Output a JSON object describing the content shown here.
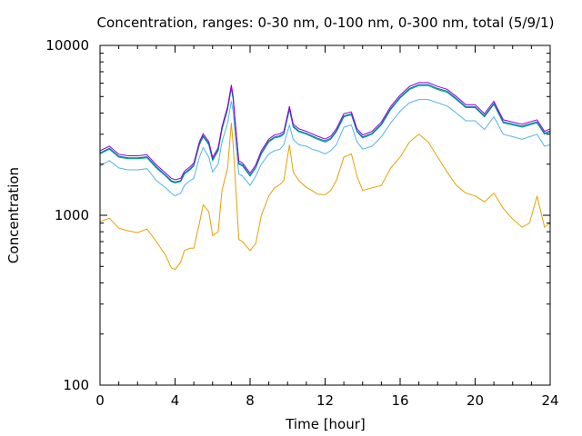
{
  "chart_data": {
    "type": "line",
    "title": "Concentration, ranges: 0-30 nm, 0-100 nm, 0-300 nm, total (5/9/1)",
    "xlabel": "Time [hour]",
    "ylabel": "Concentration",
    "xlim": [
      0,
      24
    ],
    "ylim": [
      100,
      10000
    ],
    "yscale": "log",
    "grid": false,
    "x_ticks": [
      "0",
      "4",
      "8",
      "12",
      "16",
      "20",
      "24"
    ],
    "y_ticks": [
      "100",
      "1000",
      "10000"
    ],
    "series": [
      {
        "color": "#e6a000",
        "x": [
          0,
          0.5,
          1,
          1.5,
          2,
          2.5,
          3,
          3.5,
          3.8,
          4,
          4.3,
          4.5,
          4.8,
          5,
          5.3,
          5.5,
          5.8,
          6,
          6.3,
          6.5,
          6.8,
          7,
          7.1,
          7.2,
          7.4,
          7.6,
          8,
          8.3,
          8.6,
          9,
          9.3,
          9.6,
          9.8,
          10.1,
          10.3,
          10.6,
          11,
          11.3,
          11.6,
          12,
          12.3,
          12.6,
          13,
          13.4,
          13.7,
          14,
          14.5,
          15,
          15.5,
          16,
          16.5,
          17,
          17.5,
          18,
          18.5,
          19,
          19.5,
          20,
          20.5,
          21,
          21.5,
          22,
          22.5,
          22.9,
          23.3,
          23.7,
          24
        ],
        "values": [
          920,
          960,
          840,
          810,
          790,
          830,
          700,
          580,
          490,
          480,
          530,
          620,
          640,
          640,
          900,
          1150,
          1050,
          760,
          800,
          1400,
          1900,
          3500,
          2600,
          1700,
          720,
          700,
          620,
          680,
          1000,
          1300,
          1450,
          1520,
          1600,
          2600,
          1800,
          1600,
          1460,
          1400,
          1330,
          1320,
          1400,
          1600,
          2200,
          2300,
          1700,
          1400,
          1450,
          1500,
          1900,
          2200,
          2700,
          3000,
          2700,
          2200,
          1800,
          1500,
          1350,
          1300,
          1200,
          1350,
          1100,
          950,
          850,
          900,
          1300,
          850,
          900
        ]
      },
      {
        "color": "#56b4e9",
        "x": [
          0,
          0.5,
          1,
          1.5,
          2,
          2.5,
          3,
          3.5,
          3.8,
          4,
          4.3,
          4.5,
          4.8,
          5,
          5.3,
          5.5,
          5.8,
          6,
          6.3,
          6.5,
          6.8,
          7,
          7.1,
          7.2,
          7.4,
          7.6,
          8,
          8.3,
          8.6,
          9,
          9.3,
          9.6,
          9.8,
          10.1,
          10.3,
          10.6,
          11,
          11.3,
          11.6,
          12,
          12.3,
          12.6,
          13,
          13.4,
          13.7,
          14,
          14.5,
          15,
          15.5,
          16,
          16.5,
          17,
          17.5,
          18,
          18.5,
          19,
          19.5,
          20,
          20.5,
          21,
          21.5,
          22,
          22.5,
          22.9,
          23.3,
          23.7,
          24
        ],
        "values": [
          1950,
          2100,
          1900,
          1850,
          1850,
          1880,
          1600,
          1450,
          1350,
          1300,
          1350,
          1500,
          1600,
          1650,
          2200,
          2500,
          2200,
          1800,
          2000,
          2700,
          3500,
          4700,
          4100,
          3000,
          1750,
          1700,
          1500,
          1700,
          2000,
          2300,
          2400,
          2450,
          2600,
          3400,
          2800,
          2600,
          2550,
          2450,
          2400,
          2300,
          2400,
          2600,
          3300,
          3400,
          2700,
          2450,
          2550,
          2900,
          3500,
          4100,
          4600,
          4800,
          4800,
          4600,
          4400,
          4000,
          3600,
          3600,
          3200,
          3800,
          3000,
          2900,
          2800,
          2900,
          3000,
          2550,
          2600
        ]
      },
      {
        "color": "#009e73",
        "x": [
          0,
          0.5,
          1,
          1.5,
          2,
          2.5,
          3,
          3.5,
          3.8,
          4,
          4.3,
          4.5,
          4.8,
          5,
          5.3,
          5.5,
          5.8,
          6,
          6.3,
          6.5,
          6.8,
          7,
          7.1,
          7.2,
          7.4,
          7.6,
          8,
          8.3,
          8.6,
          9,
          9.3,
          9.6,
          9.8,
          10.1,
          10.3,
          10.6,
          11,
          11.3,
          11.6,
          12,
          12.3,
          12.6,
          13,
          13.4,
          13.7,
          14,
          14.5,
          15,
          15.5,
          16,
          16.5,
          17,
          17.5,
          18,
          18.5,
          19,
          19.5,
          20,
          20.5,
          21,
          21.5,
          22,
          22.5,
          22.9,
          23.3,
          23.7,
          24
        ],
        "values": [
          2300,
          2450,
          2200,
          2150,
          2150,
          2180,
          1900,
          1700,
          1580,
          1550,
          1580,
          1750,
          1850,
          1950,
          2600,
          2900,
          2600,
          2100,
          2400,
          3200,
          4200,
          5600,
          4800,
          3500,
          2000,
          1950,
          1700,
          1900,
          2300,
          2700,
          2850,
          2900,
          3000,
          4200,
          3300,
          3100,
          3000,
          2900,
          2800,
          2700,
          2800,
          3100,
          3800,
          3900,
          3100,
          2850,
          3000,
          3400,
          4200,
          4900,
          5500,
          5800,
          5800,
          5500,
          5300,
          4800,
          4300,
          4300,
          3800,
          4500,
          3500,
          3400,
          3300,
          3400,
          3500,
          3000,
          3100
        ]
      },
      {
        "color": "#0072b2",
        "x": [
          0,
          0.5,
          1,
          1.5,
          2,
          2.5,
          3,
          3.5,
          3.8,
          4,
          4.3,
          4.5,
          4.8,
          5,
          5.3,
          5.5,
          5.8,
          6,
          6.3,
          6.5,
          6.8,
          7,
          7.1,
          7.2,
          7.4,
          7.6,
          8,
          8.3,
          8.6,
          9,
          9.3,
          9.6,
          9.8,
          10.1,
          10.3,
          10.6,
          11,
          11.3,
          11.6,
          12,
          12.3,
          12.6,
          13,
          13.4,
          13.7,
          14,
          14.5,
          15,
          15.5,
          16,
          16.5,
          17,
          17.5,
          18,
          18.5,
          19,
          19.5,
          20,
          20.5,
          21,
          21.5,
          22,
          22.5,
          22.9,
          23.3,
          23.7,
          24
        ],
        "values": [
          2330,
          2480,
          2230,
          2180,
          2180,
          2210,
          1930,
          1720,
          1600,
          1570,
          1600,
          1770,
          1880,
          1980,
          2640,
          2940,
          2640,
          2130,
          2430,
          3240,
          4250,
          5700,
          4880,
          3550,
          2030,
          1980,
          1720,
          1920,
          2330,
          2740,
          2890,
          2940,
          3040,
          4260,
          3350,
          3140,
          3040,
          2940,
          2840,
          2740,
          2840,
          3140,
          3850,
          3950,
          3140,
          2890,
          3040,
          3450,
          4260,
          4970,
          5580,
          5880,
          5880,
          5580,
          5380,
          4870,
          4360,
          4360,
          3850,
          4560,
          3550,
          3450,
          3350,
          3450,
          3550,
          3040,
          3140
        ]
      },
      {
        "color": "#9400d3",
        "x": [
          0,
          0.5,
          1,
          1.5,
          2,
          2.5,
          3,
          3.5,
          3.8,
          4,
          4.3,
          4.5,
          4.8,
          5,
          5.3,
          5.5,
          5.8,
          6,
          6.3,
          6.5,
          6.8,
          7,
          7.1,
          7.2,
          7.4,
          7.6,
          8,
          8.3,
          8.6,
          9,
          9.3,
          9.6,
          9.8,
          10.1,
          10.3,
          10.6,
          11,
          11.3,
          11.6,
          12,
          12.3,
          12.6,
          13,
          13.4,
          13.7,
          14,
          14.5,
          15,
          15.5,
          16,
          16.5,
          17,
          17.5,
          18,
          18.5,
          19,
          19.5,
          20,
          20.5,
          21,
          21.5,
          22,
          22.5,
          22.9,
          23.3,
          23.7,
          24
        ],
        "values": [
          2400,
          2550,
          2290,
          2240,
          2240,
          2270,
          1980,
          1770,
          1650,
          1620,
          1650,
          1820,
          1930,
          2030,
          2710,
          3020,
          2710,
          2190,
          2500,
          3330,
          4370,
          5850,
          5000,
          3650,
          2090,
          2030,
          1770,
          1980,
          2400,
          2810,
          2970,
          3020,
          3120,
          4380,
          3440,
          3230,
          3120,
          3020,
          2920,
          2810,
          2920,
          3230,
          3960,
          4060,
          3230,
          2970,
          3120,
          3540,
          4380,
          5100,
          5730,
          6040,
          6040,
          5730,
          5520,
          5000,
          4480,
          4480,
          3960,
          4690,
          3650,
          3540,
          3440,
          3540,
          3650,
          3120,
          3230
        ]
      }
    ]
  }
}
